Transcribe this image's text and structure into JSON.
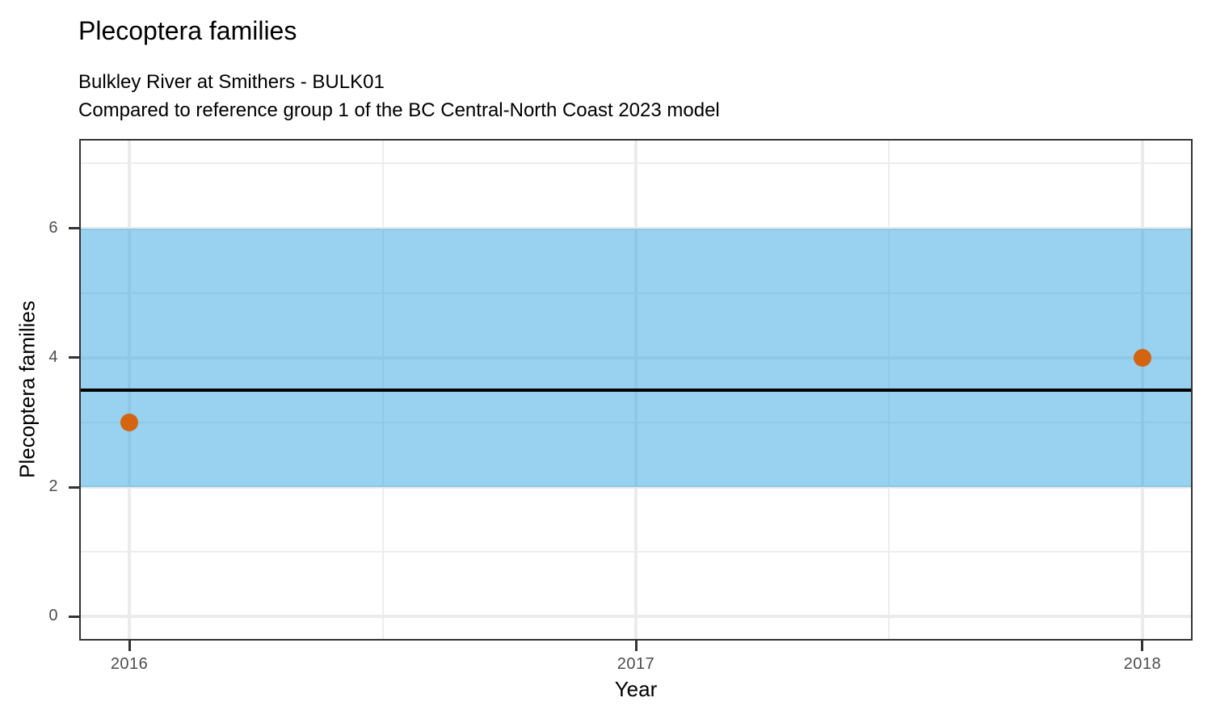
{
  "chart_data": {
    "type": "scatter",
    "title": "Plecoptera families",
    "subtitle": [
      "Bulkley River at Smithers - BULK01",
      "Compared to reference group 1 of the BC Central-North Coast 2023 model"
    ],
    "xlabel": "Year",
    "ylabel": "Plecoptera families",
    "series": [
      {
        "name": "observed",
        "points": [
          {
            "x": 2016,
            "y": 3
          },
          {
            "x": 2018,
            "y": 4
          }
        ]
      }
    ],
    "reference_band": {
      "ymin": 2,
      "ymax": 6,
      "fill": "#33A3E1",
      "opacity": 0.5
    },
    "reference_line": {
      "y": 3.5,
      "color": "#000000"
    },
    "axes": {
      "x": {
        "ticks": [
          2016,
          2017,
          2018
        ],
        "minor_ticks": [
          2016.5,
          2017.5
        ],
        "lim": [
          2015.901,
          2018.099
        ]
      },
      "y": {
        "ticks": [
          0,
          2,
          4,
          6
        ],
        "minor_ticks": [
          1,
          3,
          5,
          7
        ],
        "lim": [
          -0.37,
          7.38
        ]
      }
    },
    "grid": true,
    "legend": "none",
    "colors": {
      "point": "#D4640F",
      "grid_major": "#EBEBEB",
      "grid_minor": "#EDEDED",
      "panel_border": "#333333",
      "tick_mark": "#333333",
      "tick_text": "#4D4D4D",
      "title_text": "#000000",
      "band_over_white": "#99D1F0"
    }
  }
}
